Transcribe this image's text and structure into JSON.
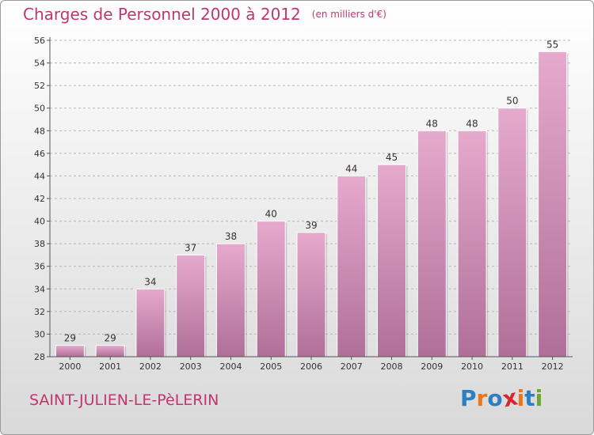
{
  "title": "Charges de Personnel 2000 à 2012",
  "unit": "(en milliers d'€)",
  "commune": "SAINT-JULIEN-LE-PèLERIN",
  "brand": {
    "text": "Proxiti",
    "letter_colors": [
      "#2e7fc1",
      "#e8771c",
      "#2e7fc1",
      "#d8262e",
      "#e8771c",
      "#2e7fc1",
      "#6aa832"
    ]
  },
  "colors": {
    "bar_top": "#e6aacd",
    "bar_bottom": "#b06f98",
    "title": "#c0376c"
  },
  "chart_data": {
    "type": "bar",
    "categories": [
      "2000",
      "2001",
      "2002",
      "2003",
      "2004",
      "2005",
      "2006",
      "2007",
      "2008",
      "2009",
      "2010",
      "2011",
      "2012"
    ],
    "values": [
      29,
      29,
      34,
      37,
      38,
      40,
      39,
      44,
      45,
      48,
      48,
      50,
      55
    ],
    "ylim": [
      28,
      56
    ],
    "yticks": [
      28,
      30,
      32,
      34,
      36,
      38,
      40,
      42,
      44,
      46,
      48,
      50,
      52,
      54,
      56
    ],
    "grid": "horizontal dashed",
    "data_labels": true
  }
}
